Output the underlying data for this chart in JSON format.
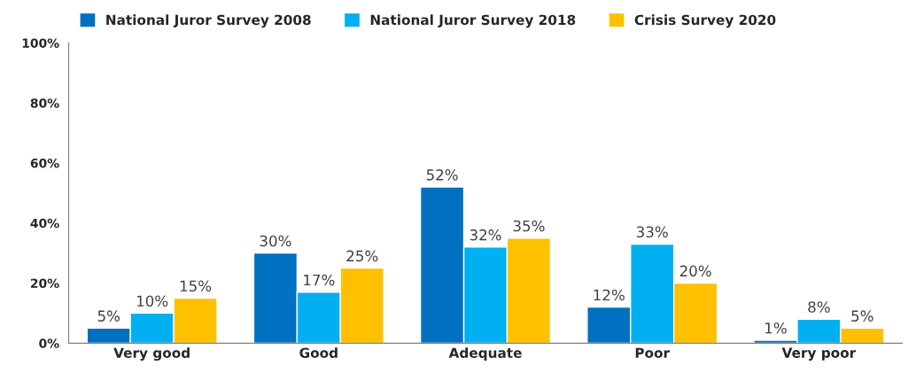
{
  "chart_data": {
    "type": "bar",
    "categories": [
      "Very good",
      "Good",
      "Adequate",
      "Poor",
      "Very poor"
    ],
    "series": [
      {
        "name": "National Juror Survey 2008",
        "color": "#0070c0",
        "values": [
          5,
          30,
          52,
          12,
          1
        ],
        "value_labels": [
          "5%",
          "30%",
          "52%",
          "12%",
          "1%"
        ]
      },
      {
        "name": "National Juror Survey 2018",
        "color": "#00b0f0",
        "values": [
          10,
          17,
          32,
          33,
          8
        ],
        "value_labels": [
          "10%",
          "17%",
          "32%",
          "33%",
          "8%"
        ]
      },
      {
        "name": "Crisis Survey 2020",
        "color": "#ffc000",
        "values": [
          15,
          25,
          35,
          20,
          5
        ],
        "value_labels": [
          "15%",
          "25%",
          "35%",
          "20%",
          "5%"
        ]
      }
    ],
    "ylim": [
      0,
      100
    ],
    "yticks": [
      {
        "value": 0,
        "label": "0%"
      },
      {
        "value": 20,
        "label": "20%"
      },
      {
        "value": 40,
        "label": "40%"
      },
      {
        "value": 60,
        "label": "60%"
      },
      {
        "value": 80,
        "label": "80%"
      },
      {
        "value": 100,
        "label": "100%"
      }
    ],
    "grid": false,
    "legend": "top left"
  }
}
